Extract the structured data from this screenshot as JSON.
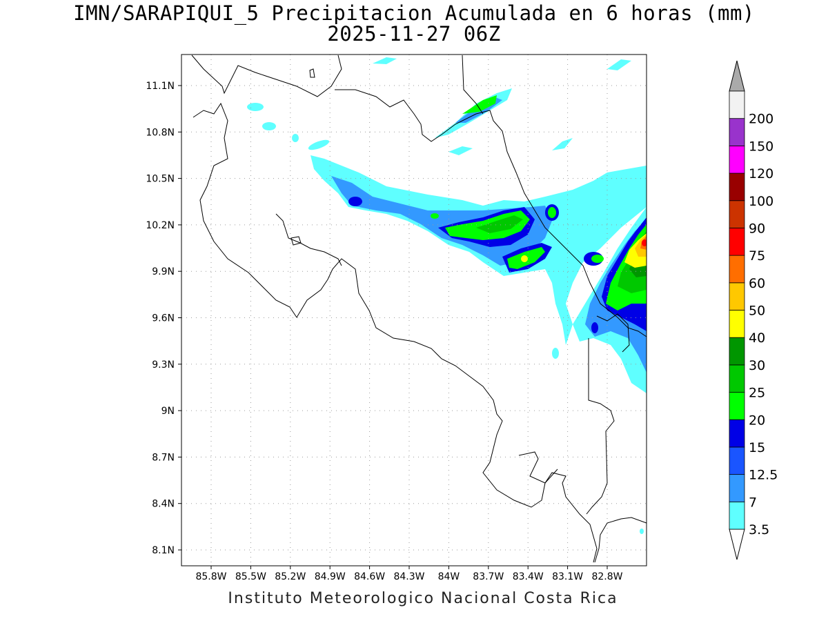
{
  "header": {
    "title": "IMN/SARAPIQUI_5 Precipitacion Acumulada en 6 horas (mm)",
    "subtitle": "2025-11-27 06Z"
  },
  "map": {
    "lat_labels": [
      "11.1N",
      "10.8N",
      "10.5N",
      "10.2N",
      "9.9N",
      "9.6N",
      "9.3N",
      "9N",
      "8.7N",
      "8.4N",
      "8.1N"
    ],
    "lon_labels": [
      "85.8W",
      "85.5W",
      "85.2W",
      "84.9W",
      "84.6W",
      "84.3W",
      "84W",
      "83.7W",
      "83.4W",
      "83.1W",
      "82.8W"
    ],
    "grid": true,
    "gridline_color": "#9a9a9a"
  },
  "colorbar": {
    "levels": [
      "3.5",
      "7",
      "12.5",
      "15",
      "20",
      "25",
      "30",
      "40",
      "50",
      "60",
      "75",
      "90",
      "100",
      "120",
      "150",
      "200"
    ],
    "colors": [
      "#5fffff",
      "#3399ff",
      "#1a55ff",
      "#0000e6",
      "#00ff00",
      "#00c800",
      "#009600",
      "#ffff00",
      "#ffc800",
      "#ff6e00",
      "#ff0000",
      "#cc3300",
      "#990000",
      "#ff00ff",
      "#9933cc",
      "#f2f2f2"
    ],
    "over_color": "#aaaaaa",
    "under_color": "#ffffff"
  },
  "footer": {
    "credit": "Instituto Meteorologico Nacional Costa Rica"
  }
}
